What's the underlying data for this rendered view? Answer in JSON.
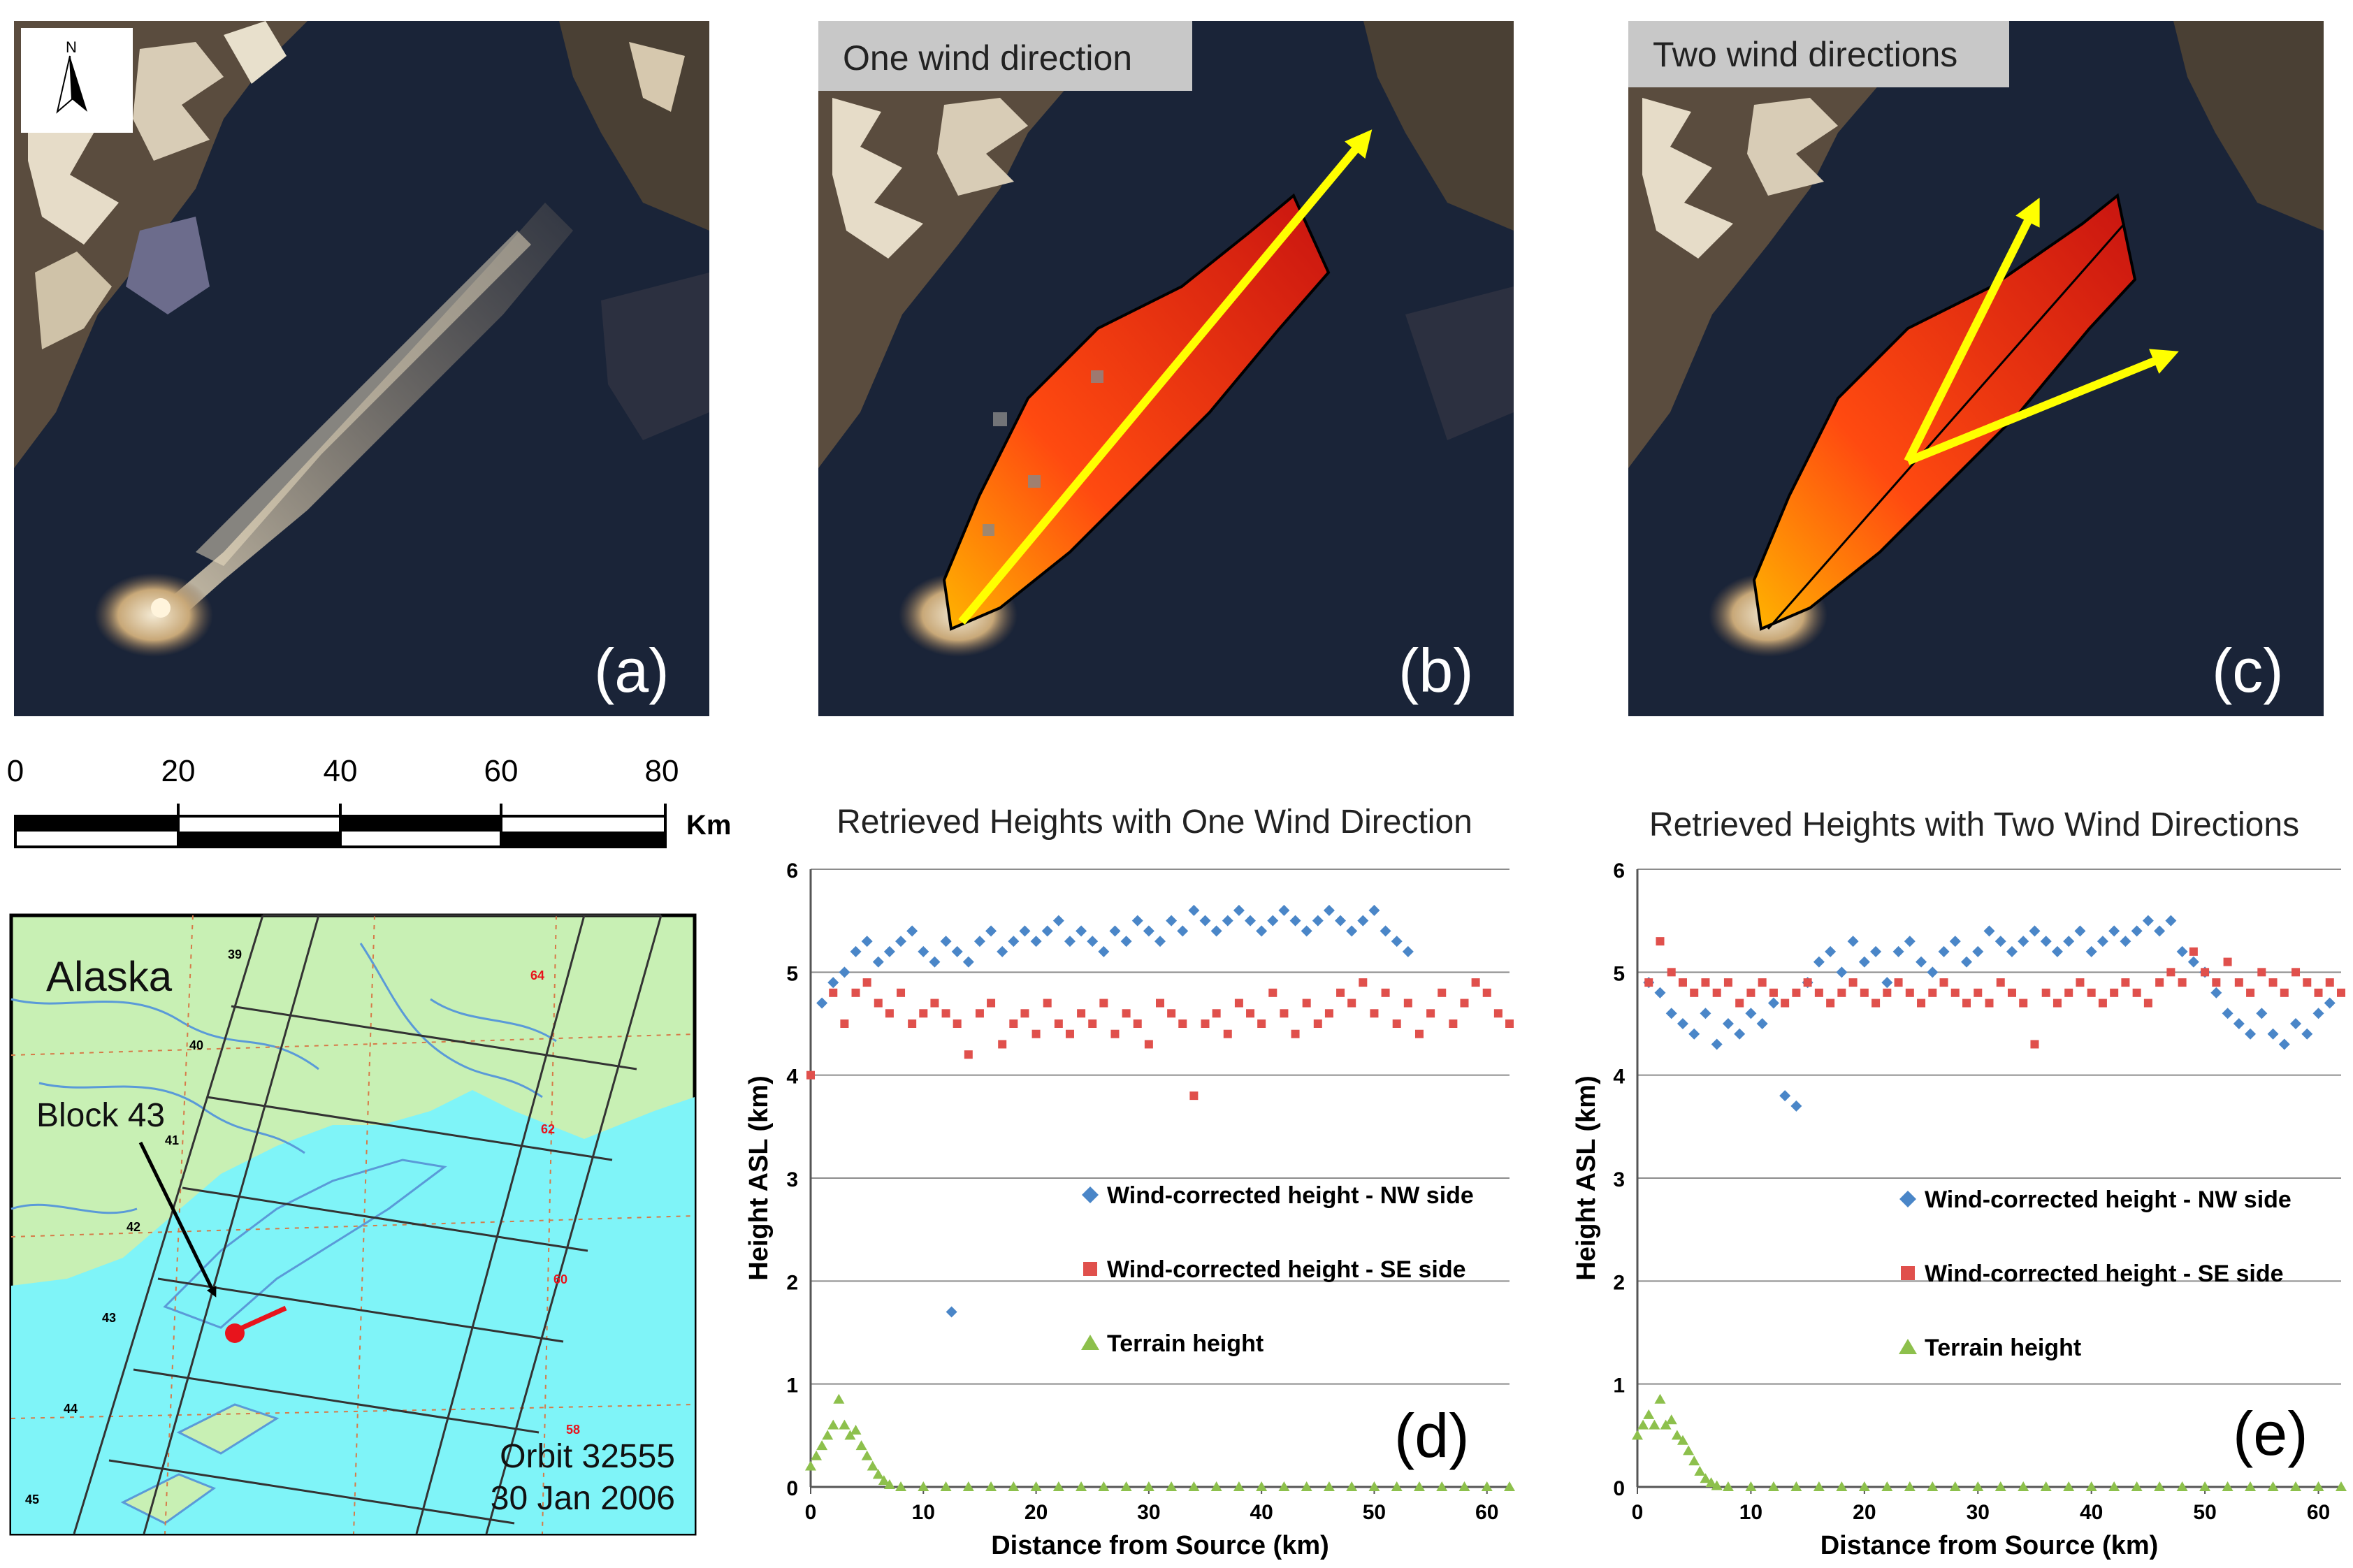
{
  "panels": {
    "a": {
      "letter": "(a)"
    },
    "b": {
      "letter": "(b)",
      "title": "One wind direction"
    },
    "c": {
      "letter": "(c)",
      "title": "Two wind directions"
    },
    "d": {
      "letter": "(d)"
    },
    "e": {
      "letter": "(e)"
    }
  },
  "north_arrow": {
    "label": "N"
  },
  "scale_bar": {
    "ticks": [
      "0",
      "20",
      "40",
      "60",
      "80"
    ],
    "unit": "Km"
  },
  "map": {
    "region_label": "Alaska",
    "block_label": "Block 43",
    "orbit_label": "Orbit 32555",
    "date_label": "30 Jan 2006",
    "block_numbers": [
      "39",
      "40",
      "41",
      "42",
      "43",
      "44",
      "45"
    ],
    "path_numbers": [
      "64",
      "62",
      "60",
      "58"
    ],
    "colors": {
      "land": "#c8f0b4",
      "water": "#7ff4f8",
      "river": "#5a9ad8",
      "block_outline": "#333333",
      "source": "#e8141c"
    }
  },
  "chart_data": [
    {
      "type": "scatter",
      "title": "Retrieved Heights with One Wind Direction",
      "xlabel": "Distance from Source (km)",
      "ylabel": "Height ASL (km)",
      "xlim": [
        0,
        62
      ],
      "ylim": [
        0,
        6
      ],
      "xticks": [
        "0",
        "10",
        "20",
        "30",
        "40",
        "50",
        "60"
      ],
      "yticks": [
        "0",
        "1",
        "2",
        "3",
        "4",
        "5",
        "6"
      ],
      "grid": true,
      "legend": [
        "Wind-corrected height - NW side",
        "Wind-corrected height - SE side",
        "Terrain height"
      ],
      "series": [
        {
          "name": "Wind-corrected height - NW side",
          "marker": "diamond",
          "color": "#4a86c8",
          "x": [
            1,
            2,
            3,
            4,
            5,
            6,
            7,
            8,
            9,
            10,
            11,
            12,
            12.5,
            13,
            14,
            15,
            16,
            17,
            18,
            19,
            20,
            21,
            22,
            23,
            24,
            25,
            26,
            27,
            28,
            29,
            30,
            31,
            32,
            33,
            34,
            35,
            36,
            37,
            38,
            39,
            40,
            41,
            42,
            43,
            44,
            45,
            46,
            47,
            48,
            49,
            50,
            51,
            52,
            53
          ],
          "y": [
            4.7,
            4.9,
            5.0,
            5.2,
            5.3,
            5.1,
            5.2,
            5.3,
            5.4,
            5.2,
            5.1,
            5.3,
            1.7,
            5.2,
            5.1,
            5.3,
            5.4,
            5.2,
            5.3,
            5.4,
            5.3,
            5.4,
            5.5,
            5.3,
            5.4,
            5.3,
            5.2,
            5.4,
            5.3,
            5.5,
            5.4,
            5.3,
            5.5,
            5.4,
            5.6,
            5.5,
            5.4,
            5.5,
            5.6,
            5.5,
            5.4,
            5.5,
            5.6,
            5.5,
            5.4,
            5.5,
            5.6,
            5.5,
            5.4,
            5.5,
            5.6,
            5.4,
            5.3,
            5.2
          ]
        },
        {
          "name": "Wind-corrected height - SE side",
          "marker": "square",
          "color": "#e0504c",
          "x": [
            0,
            2,
            3,
            4,
            5,
            6,
            7,
            8,
            9,
            10,
            11,
            12,
            13,
            14,
            15,
            16,
            17,
            18,
            19,
            20,
            21,
            22,
            23,
            24,
            25,
            26,
            27,
            28,
            29,
            30,
            31,
            32,
            33,
            34,
            35,
            36,
            37,
            38,
            39,
            40,
            41,
            42,
            43,
            44,
            45,
            46,
            47,
            48,
            49,
            50,
            51,
            52,
            53,
            54,
            55,
            56,
            57,
            58,
            59,
            60,
            61,
            62
          ],
          "y": [
            4.0,
            4.8,
            4.5,
            4.8,
            4.9,
            4.7,
            4.6,
            4.8,
            4.5,
            4.6,
            4.7,
            4.6,
            4.5,
            4.2,
            4.6,
            4.7,
            4.3,
            4.5,
            4.6,
            4.4,
            4.7,
            4.5,
            4.4,
            4.6,
            4.5,
            4.7,
            4.4,
            4.6,
            4.5,
            4.3,
            4.7,
            4.6,
            4.5,
            3.8,
            4.5,
            4.6,
            4.4,
            4.7,
            4.6,
            4.5,
            4.8,
            4.6,
            4.4,
            4.7,
            4.5,
            4.6,
            4.8,
            4.7,
            4.9,
            4.6,
            4.8,
            4.5,
            4.7,
            4.4,
            4.6,
            4.8,
            4.5,
            4.7,
            4.9,
            4.8,
            4.6,
            4.5
          ]
        },
        {
          "name": "Terrain height",
          "marker": "triangle",
          "color": "#8dc04c",
          "x": [
            0,
            0.5,
            1,
            1.5,
            2,
            2.5,
            3,
            3.5,
            4,
            4.5,
            5,
            5.5,
            6,
            6.5,
            7,
            8,
            10,
            12,
            14,
            16,
            18,
            20,
            22,
            24,
            26,
            28,
            30,
            32,
            34,
            36,
            38,
            40,
            42,
            44,
            46,
            48,
            50,
            52,
            54,
            56,
            58,
            60,
            62
          ],
          "y": [
            0.2,
            0.3,
            0.4,
            0.5,
            0.6,
            0.85,
            0.6,
            0.5,
            0.55,
            0.4,
            0.3,
            0.2,
            0.12,
            0.06,
            0.02,
            0,
            0,
            0,
            0,
            0,
            0,
            0,
            0,
            0,
            0,
            0,
            0,
            0,
            0,
            0,
            0,
            0,
            0,
            0,
            0,
            0,
            0,
            0,
            0,
            0,
            0,
            0,
            0
          ]
        }
      ]
    },
    {
      "type": "scatter",
      "title": "Retrieved Heights with Two Wind Directions",
      "xlabel": "Distance from Source (km)",
      "ylabel": "Height ASL (km)",
      "xlim": [
        0,
        62
      ],
      "ylim": [
        0,
        6
      ],
      "xticks": [
        "0",
        "10",
        "20",
        "30",
        "40",
        "50",
        "60"
      ],
      "yticks": [
        "0",
        "1",
        "2",
        "3",
        "4",
        "5",
        "6"
      ],
      "grid": true,
      "legend": [
        "Wind-corrected height - NW side",
        "Wind-corrected height - SE side",
        "Terrain height"
      ],
      "series": [
        {
          "name": "Wind-corrected height - NW side",
          "marker": "diamond",
          "color": "#4a86c8",
          "x": [
            1,
            2,
            3,
            4,
            5,
            6,
            7,
            8,
            9,
            10,
            11,
            12,
            13,
            14,
            15,
            16,
            17,
            18,
            19,
            20,
            21,
            22,
            23,
            24,
            25,
            26,
            27,
            28,
            29,
            30,
            31,
            32,
            33,
            34,
            35,
            36,
            37,
            38,
            39,
            40,
            41,
            42,
            43,
            44,
            45,
            46,
            47,
            48,
            49,
            50,
            51,
            52,
            53,
            54,
            55,
            56,
            57,
            58,
            59,
            60,
            61
          ],
          "y": [
            4.9,
            4.8,
            4.6,
            4.5,
            4.4,
            4.6,
            4.3,
            4.5,
            4.4,
            4.6,
            4.5,
            4.7,
            3.8,
            3.7,
            4.9,
            5.1,
            5.2,
            5.0,
            5.3,
            5.1,
            5.2,
            4.9,
            5.2,
            5.3,
            5.1,
            5.0,
            5.2,
            5.3,
            5.1,
            5.2,
            5.4,
            5.3,
            5.2,
            5.3,
            5.4,
            5.3,
            5.2,
            5.3,
            5.4,
            5.2,
            5.3,
            5.4,
            5.3,
            5.4,
            5.5,
            5.4,
            5.5,
            5.2,
            5.1,
            5.0,
            4.8,
            4.6,
            4.5,
            4.4,
            4.6,
            4.4,
            4.3,
            4.5,
            4.4,
            4.6,
            4.7
          ]
        },
        {
          "name": "Wind-corrected height - SE side",
          "marker": "square",
          "color": "#e0504c",
          "x": [
            1,
            2,
            3,
            4,
            5,
            6,
            7,
            8,
            9,
            10,
            11,
            12,
            13,
            14,
            15,
            16,
            17,
            18,
            19,
            20,
            21,
            22,
            23,
            24,
            25,
            26,
            27,
            28,
            29,
            30,
            31,
            32,
            33,
            34,
            35,
            36,
            37,
            38,
            39,
            40,
            41,
            42,
            43,
            44,
            45,
            46,
            47,
            48,
            49,
            50,
            51,
            52,
            53,
            54,
            55,
            56,
            57,
            58,
            59,
            60,
            61,
            62
          ],
          "y": [
            4.9,
            5.3,
            5.0,
            4.9,
            4.8,
            4.9,
            4.8,
            4.9,
            4.7,
            4.8,
            4.9,
            4.8,
            4.7,
            4.8,
            4.9,
            4.8,
            4.7,
            4.8,
            4.9,
            4.8,
            4.7,
            4.8,
            4.9,
            4.8,
            4.7,
            4.8,
            4.9,
            4.8,
            4.7,
            4.8,
            4.7,
            4.9,
            4.8,
            4.7,
            4.3,
            4.8,
            4.7,
            4.8,
            4.9,
            4.8,
            4.7,
            4.8,
            4.9,
            4.8,
            4.7,
            4.9,
            5.0,
            4.9,
            5.2,
            5.0,
            4.9,
            5.1,
            4.9,
            4.8,
            5.0,
            4.9,
            4.8,
            5.0,
            4.9,
            4.8,
            4.9,
            4.8
          ]
        },
        {
          "name": "Terrain height",
          "marker": "triangle",
          "color": "#8dc04c",
          "x": [
            0,
            0.5,
            1,
            1.5,
            2,
            2.5,
            3,
            3.5,
            4,
            4.5,
            5,
            5.5,
            6,
            6.5,
            7,
            8,
            10,
            12,
            14,
            16,
            18,
            20,
            22,
            24,
            26,
            28,
            30,
            32,
            34,
            36,
            38,
            40,
            42,
            44,
            46,
            48,
            50,
            52,
            54,
            56,
            58,
            60,
            62
          ],
          "y": [
            0.5,
            0.6,
            0.7,
            0.6,
            0.85,
            0.6,
            0.65,
            0.5,
            0.45,
            0.35,
            0.25,
            0.15,
            0.08,
            0.04,
            0.01,
            0,
            0,
            0,
            0,
            0,
            0,
            0,
            0,
            0,
            0,
            0,
            0,
            0,
            0,
            0,
            0,
            0,
            0,
            0,
            0,
            0,
            0,
            0,
            0,
            0,
            0,
            0,
            0
          ]
        }
      ]
    }
  ]
}
